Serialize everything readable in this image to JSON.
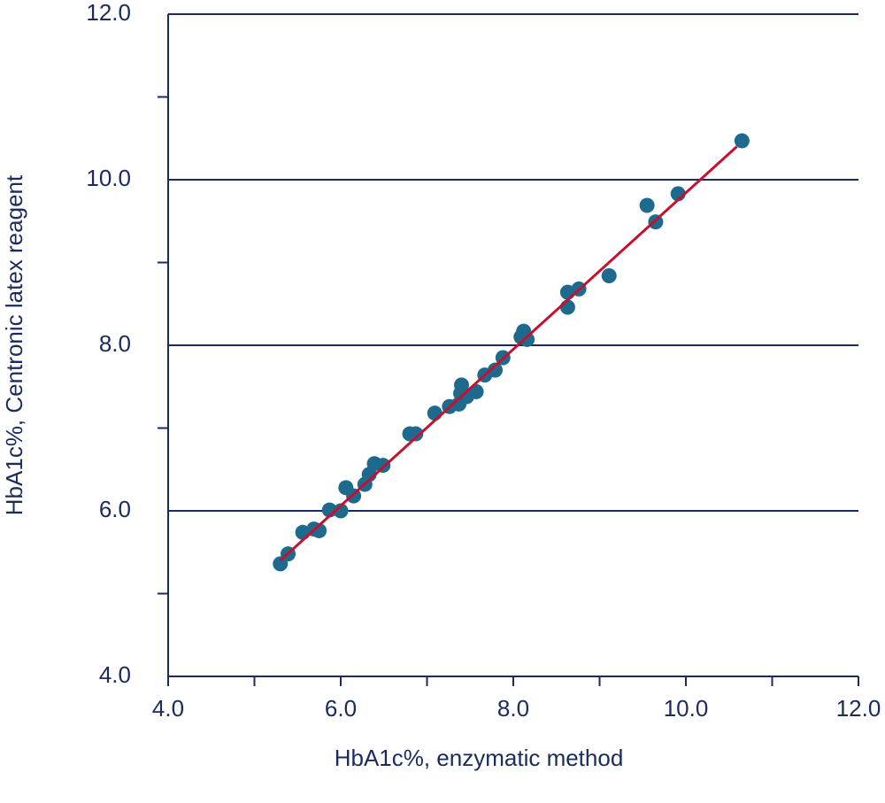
{
  "chart_data": {
    "type": "scatter",
    "x_label": "HbA1c%, enzymatic method",
    "y_label": "HbA1c%, Centronic latex reagent",
    "x": [
      5.3,
      5.39,
      5.56,
      5.69,
      5.75,
      5.87,
      6.0,
      6.06,
      6.15,
      6.28,
      6.33,
      6.39,
      6.49,
      6.8,
      6.87,
      7.09,
      7.26,
      7.37,
      7.39,
      7.4,
      7.46,
      7.57,
      7.67,
      7.79,
      7.88,
      8.09,
      8.12,
      8.16,
      8.63,
      8.63,
      8.76,
      9.11,
      9.55,
      9.65,
      9.91,
      10.65
    ],
    "values": [
      5.36,
      5.48,
      5.74,
      5.78,
      5.76,
      6.01,
      6.0,
      6.28,
      6.18,
      6.32,
      6.44,
      6.57,
      6.55,
      6.93,
      6.93,
      7.18,
      7.26,
      7.29,
      7.42,
      7.52,
      7.38,
      7.44,
      7.64,
      7.7,
      7.85,
      8.1,
      8.17,
      8.07,
      8.64,
      8.46,
      8.68,
      8.84,
      9.69,
      9.49,
      9.83,
      10.47
    ],
    "color": "#1d6a8e",
    "trendline": {
      "x": [
        5.3,
        10.59
      ],
      "y": [
        5.4,
        10.4
      ],
      "color": "#c8102e"
    },
    "xlim": [
      4,
      12
    ],
    "ylim": [
      4,
      12
    ],
    "xticks": [
      {
        "value": 4,
        "label": "4.0"
      },
      {
        "value": 6,
        "label": "6.0"
      },
      {
        "value": 8,
        "label": "8.0"
      },
      {
        "value": 10,
        "label": "10.0"
      },
      {
        "value": 12,
        "label": "12.0"
      }
    ],
    "yticks": [
      {
        "value": 4,
        "label": "4.0"
      },
      {
        "value": 6,
        "label": "6.0"
      },
      {
        "value": 8,
        "label": "8.0"
      },
      {
        "value": 10,
        "label": "10.0"
      },
      {
        "value": 12,
        "label": "12.0"
      }
    ],
    "xminor": [
      5,
      7,
      9,
      11
    ],
    "yminor": [
      5,
      7,
      9,
      11
    ],
    "grid": true
  }
}
